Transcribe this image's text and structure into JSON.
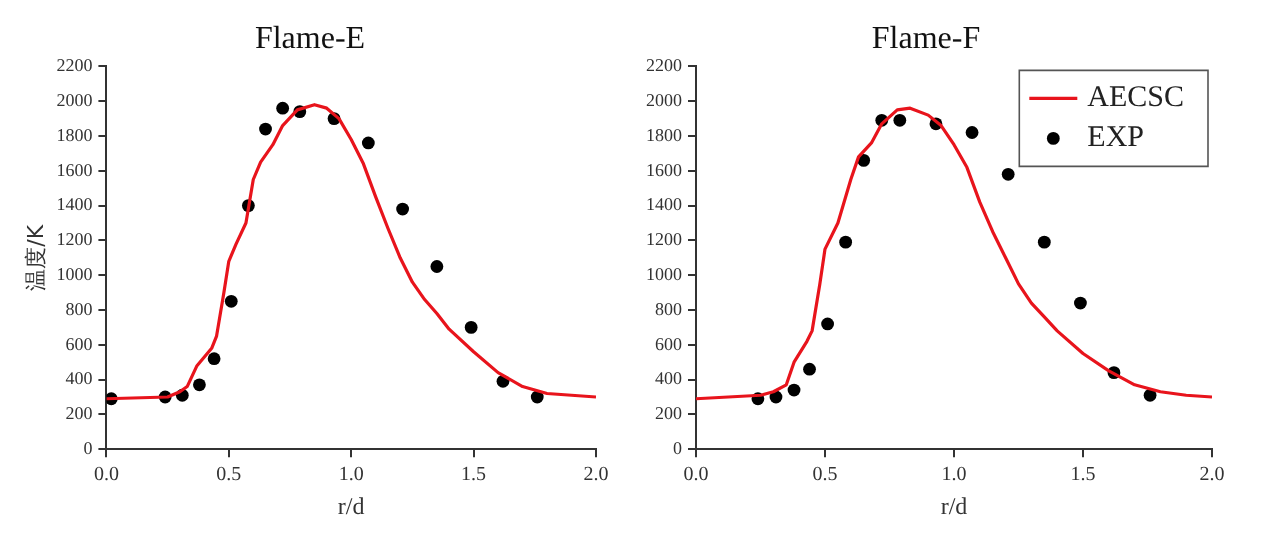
{
  "chart_data": [
    {
      "type": "line",
      "title": "Flame-E",
      "xlabel": "r/d",
      "ylabel": "温度/K",
      "xlim": [
        0,
        2
      ],
      "ylim": [
        0,
        2200
      ],
      "xticks": [
        {
          "value": 0,
          "label": "0.0"
        },
        {
          "value": 0.5,
          "label": "0.5"
        },
        {
          "value": 1,
          "label": "1.0"
        },
        {
          "value": 1.5,
          "label": "1.5"
        },
        {
          "value": 2,
          "label": "2.0"
        }
      ],
      "yticks": [
        0,
        200,
        400,
        600,
        800,
        1000,
        1200,
        1400,
        1600,
        1800,
        2000,
        2200
      ],
      "grid": false,
      "legend": false,
      "series": [
        {
          "type": "line",
          "color": "#e8141c",
          "marker": "none",
          "x": [
            0,
            0.25,
            0.3,
            0.33,
            0.37,
            0.43,
            0.45,
            0.48,
            0.5,
            0.53,
            0.57,
            0.6,
            0.63,
            0.68,
            0.72,
            0.78,
            0.85,
            0.9,
            0.95,
            1.0,
            1.05,
            1.1,
            1.15,
            1.2,
            1.25,
            1.3,
            1.35,
            1.4,
            1.5,
            1.6,
            1.7,
            1.8,
            1.9,
            2.0
          ],
          "values": [
            290,
            300,
            330,
            360,
            480,
            580,
            650,
            900,
            1080,
            1180,
            1300,
            1550,
            1650,
            1750,
            1860,
            1950,
            1980,
            1960,
            1900,
            1780,
            1640,
            1450,
            1270,
            1100,
            960,
            860,
            780,
            690,
            560,
            440,
            360,
            320,
            310,
            300
          ]
        },
        {
          "type": "scatter",
          "color": "#000000",
          "marker": "circle",
          "x": [
            0.02,
            0.24,
            0.31,
            0.38,
            0.44,
            0.51,
            0.58,
            0.65,
            0.72,
            0.79,
            0.93,
            1.07,
            1.21,
            1.35,
            1.49,
            1.62,
            1.76
          ],
          "values": [
            290,
            300,
            310,
            370,
            520,
            850,
            1400,
            1840,
            1960,
            1940,
            1900,
            1760,
            1380,
            1050,
            700,
            390,
            300
          ]
        }
      ]
    },
    {
      "type": "line",
      "title": "Flame-F",
      "xlabel": "r/d",
      "xlim": [
        0,
        2
      ],
      "ylim": [
        0,
        2200
      ],
      "xticks": [
        {
          "value": 0,
          "label": "0.0"
        },
        {
          "value": 0.5,
          "label": "0.5"
        },
        {
          "value": 1,
          "label": "1.0"
        },
        {
          "value": 1.5,
          "label": "1.5"
        },
        {
          "value": 2,
          "label": "2.0"
        }
      ],
      "yticks": [
        0,
        200,
        400,
        600,
        800,
        1000,
        1200,
        1400,
        1600,
        1800,
        2000,
        2200
      ],
      "grid": false,
      "legend": "top right",
      "series": [
        {
          "type": "line",
          "name": "AECSC",
          "color": "#e8141c",
          "marker": "none",
          "x": [
            0,
            0.25,
            0.3,
            0.35,
            0.38,
            0.43,
            0.45,
            0.48,
            0.5,
            0.55,
            0.6,
            0.63,
            0.68,
            0.72,
            0.78,
            0.83,
            0.9,
            0.95,
            1.0,
            1.05,
            1.1,
            1.15,
            1.2,
            1.25,
            1.3,
            1.35,
            1.4,
            1.5,
            1.6,
            1.7,
            1.8,
            1.9,
            2.0
          ],
          "values": [
            290,
            310,
            330,
            370,
            500,
            620,
            680,
            950,
            1150,
            1300,
            1550,
            1680,
            1760,
            1870,
            1950,
            1960,
            1920,
            1860,
            1750,
            1620,
            1420,
            1250,
            1100,
            950,
            840,
            760,
            680,
            550,
            450,
            370,
            330,
            310,
            300
          ]
        },
        {
          "type": "scatter",
          "name": "EXP",
          "color": "#000000",
          "marker": "circle",
          "x": [
            0.24,
            0.31,
            0.38,
            0.44,
            0.51,
            0.58,
            0.65,
            0.72,
            0.79,
            0.93,
            1.07,
            1.21,
            1.35,
            1.49,
            1.62,
            1.76
          ],
          "values": [
            290,
            300,
            340,
            460,
            720,
            1190,
            1660,
            1890,
            1890,
            1870,
            1820,
            1580,
            1190,
            840,
            440,
            310
          ]
        }
      ]
    }
  ]
}
